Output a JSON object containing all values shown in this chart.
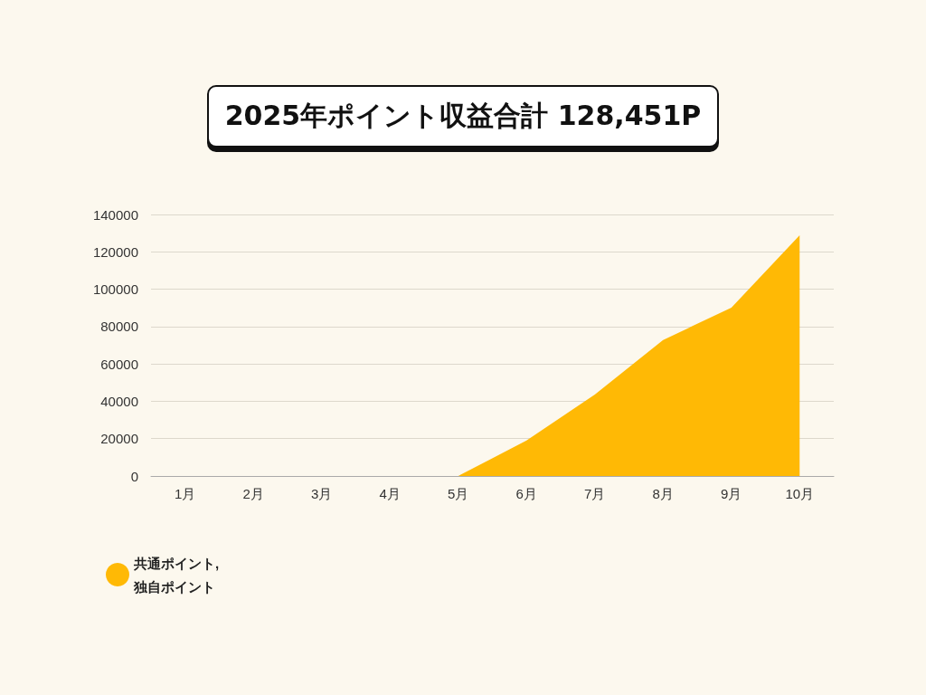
{
  "chart_data": {
    "type": "area",
    "title": "2025年ポイント収益合計 128,451P",
    "categories": [
      "1月",
      "2月",
      "3月",
      "4月",
      "5月",
      "6月",
      "7月",
      "8月",
      "9月",
      "10月"
    ],
    "series": [
      {
        "name": "共通ポイント, 独自ポイント",
        "color": "#ffb905",
        "values": [
          0,
          0,
          0,
          0,
          0,
          19000,
          43600,
          72800,
          90100,
          128900
        ]
      }
    ],
    "ylim": [
      0,
      140000
    ],
    "yticks": [
      0,
      20000,
      40000,
      60000,
      80000,
      100000,
      120000,
      140000
    ],
    "grid": "y",
    "legend": "bottom left"
  }
}
